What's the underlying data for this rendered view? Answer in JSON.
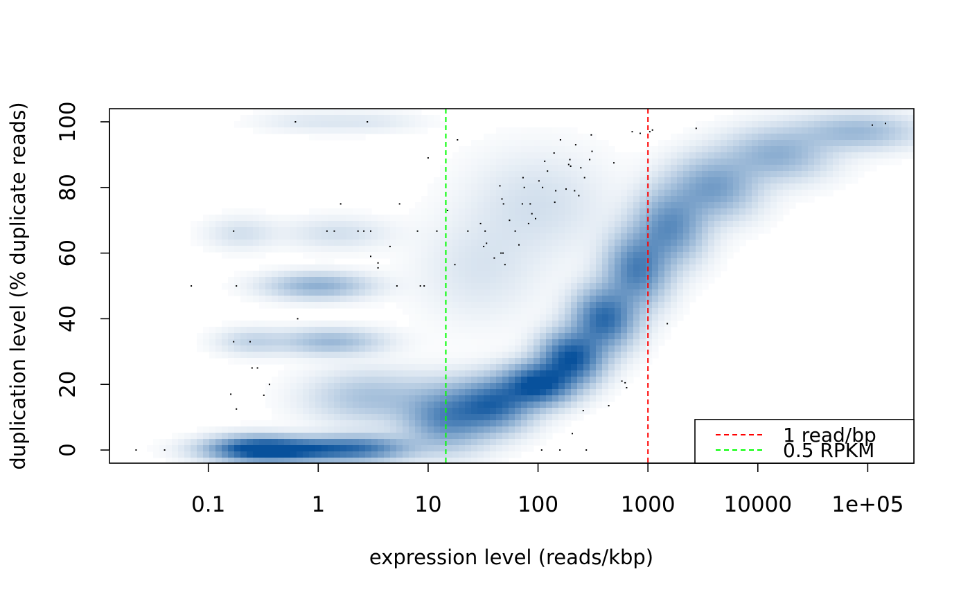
{
  "chart_data": {
    "type": "scatter",
    "style": "smoothed density scatter (blue density with outlier points)",
    "xlabel": "expression level (reads/kbp)",
    "ylabel": "duplication level (% duplicate reads)",
    "x_scale": "log10",
    "xlim": [
      0.0126,
      263000
    ],
    "ylim": [
      -4,
      104
    ],
    "x_ticks": [
      0.1,
      1,
      10,
      100,
      1000,
      10000,
      100000
    ],
    "x_tick_labels": [
      "0.1",
      "1",
      "10",
      "100",
      "1000",
      "10000",
      "1e+05"
    ],
    "y_ticks": [
      0,
      20,
      40,
      60,
      80,
      100
    ],
    "y_tick_labels": [
      "0",
      "20",
      "40",
      "60",
      "80",
      "100"
    ],
    "grid": false,
    "density_color": "#08519c",
    "reference_lines": [
      {
        "name": "1 read/bp",
        "x": 1000,
        "color": "#ff0000",
        "style": "dashed"
      },
      {
        "name": "0.5 RPKM",
        "x": 14.5,
        "color": "#00ff00",
        "style": "dashed"
      }
    ],
    "legend": {
      "placement": "bottom-right",
      "entries": [
        {
          "label": "1 read/bp",
          "color": "#ff0000",
          "style": "dashed"
        },
        {
          "label": "0.5 RPKM",
          "color": "#00ff00",
          "style": "dashed"
        }
      ]
    },
    "density_regions": [
      {
        "x": 0.5,
        "y": 0,
        "sx": 0.38,
        "sy": 2.2,
        "weight": 1.0
      },
      {
        "x": 2.5,
        "y": 0.5,
        "sx": 0.3,
        "sy": 2.5,
        "weight": 0.6
      },
      {
        "x": 0.25,
        "y": 0.5,
        "sx": 0.25,
        "sy": 2.5,
        "weight": 0.5
      },
      {
        "x": 1.0,
        "y": 50,
        "sx": 0.3,
        "sy": 2.5,
        "weight": 0.35
      },
      {
        "x": 1.3,
        "y": 33,
        "sx": 0.3,
        "sy": 2.5,
        "weight": 0.3
      },
      {
        "x": 0.25,
        "y": 33,
        "sx": 0.2,
        "sy": 2.5,
        "weight": 0.15
      },
      {
        "x": 0.2,
        "y": 66,
        "sx": 0.2,
        "sy": 3.0,
        "weight": 0.1
      },
      {
        "x": 1.5,
        "y": 66,
        "sx": 0.3,
        "sy": 3.0,
        "weight": 0.1
      },
      {
        "x": 0.8,
        "y": 100,
        "sx": 0.3,
        "sy": 2.0,
        "weight": 0.06
      },
      {
        "x": 3.0,
        "y": 100,
        "sx": 0.3,
        "sy": 2.0,
        "weight": 0.06
      },
      {
        "x": 3.0,
        "y": 16,
        "sx": 0.35,
        "sy": 5.0,
        "weight": 0.25
      },
      {
        "x": 15,
        "y": 10,
        "sx": 0.25,
        "sy": 6.0,
        "weight": 0.6
      },
      {
        "x": 40,
        "y": 14,
        "sx": 0.22,
        "sy": 5.0,
        "weight": 0.75
      },
      {
        "x": 100,
        "y": 20,
        "sx": 0.2,
        "sy": 4.0,
        "weight": 1.0
      },
      {
        "x": 200,
        "y": 28,
        "sx": 0.18,
        "sy": 5.0,
        "weight": 0.95
      },
      {
        "x": 400,
        "y": 40,
        "sx": 0.18,
        "sy": 6.0,
        "weight": 0.8
      },
      {
        "x": 800,
        "y": 55,
        "sx": 0.18,
        "sy": 7.0,
        "weight": 0.65
      },
      {
        "x": 1600,
        "y": 68,
        "sx": 0.2,
        "sy": 7.0,
        "weight": 0.55
      },
      {
        "x": 4000,
        "y": 80,
        "sx": 0.25,
        "sy": 6.0,
        "weight": 0.45
      },
      {
        "x": 15000,
        "y": 90,
        "sx": 0.3,
        "sy": 5.0,
        "weight": 0.35
      },
      {
        "x": 80000,
        "y": 97,
        "sx": 0.35,
        "sy": 3.5,
        "weight": 0.3
      },
      {
        "x": 100,
        "y": 75,
        "sx": 0.4,
        "sy": 10.0,
        "weight": 0.1
      },
      {
        "x": 30,
        "y": 55,
        "sx": 0.35,
        "sy": 10.0,
        "weight": 0.08
      }
    ],
    "outlier_points": [
      [
        0.022,
        0
      ],
      [
        0.04,
        0
      ],
      [
        0.07,
        50
      ],
      [
        0.16,
        17
      ],
      [
        0.17,
        33
      ],
      [
        0.17,
        66.7
      ],
      [
        0.18,
        12.5
      ],
      [
        0.18,
        50
      ],
      [
        0.24,
        33
      ],
      [
        0.25,
        25
      ],
      [
        0.28,
        25
      ],
      [
        0.32,
        16.7
      ],
      [
        0.36,
        20
      ],
      [
        0.62,
        100
      ],
      [
        0.65,
        40
      ],
      [
        1.2,
        66.7
      ],
      [
        1.4,
        66.7
      ],
      [
        1.6,
        75
      ],
      [
        2.3,
        66.7
      ],
      [
        2.6,
        66.7
      ],
      [
        2.8,
        100
      ],
      [
        3.0,
        66.7
      ],
      [
        3.0,
        59
      ],
      [
        3.5,
        57
      ],
      [
        3.5,
        55.5
      ],
      [
        4.5,
        62
      ],
      [
        5.2,
        50
      ],
      [
        5.5,
        75
      ],
      [
        8.0,
        66.7
      ],
      [
        8.5,
        50
      ],
      [
        9.2,
        50
      ],
      [
        10,
        89
      ],
      [
        12,
        66.7
      ],
      [
        15,
        73
      ],
      [
        17.5,
        56.5
      ],
      [
        18.5,
        94.5
      ],
      [
        23,
        66.7
      ],
      [
        30,
        69
      ],
      [
        32,
        62
      ],
      [
        33,
        66.7
      ],
      [
        34,
        63
      ],
      [
        40,
        58.5
      ],
      [
        45,
        80.5
      ],
      [
        46,
        60
      ],
      [
        47,
        76.5
      ],
      [
        48,
        60
      ],
      [
        48.5,
        75
      ],
      [
        50,
        56.5
      ],
      [
        55,
        70
      ],
      [
        62,
        66.7
      ],
      [
        67,
        62.5
      ],
      [
        72,
        75
      ],
      [
        73,
        83
      ],
      [
        75,
        80
      ],
      [
        82,
        69
      ],
      [
        85,
        75
      ],
      [
        88,
        72
      ],
      [
        95,
        70.5
      ],
      [
        102,
        82
      ],
      [
        108,
        0
      ],
      [
        110,
        80
      ],
      [
        115,
        88
      ],
      [
        122,
        85
      ],
      [
        140,
        90.5
      ],
      [
        142,
        75.5
      ],
      [
        145,
        79
      ],
      [
        158,
        0
      ],
      [
        160,
        94.5
      ],
      [
        180,
        79.5
      ],
      [
        190,
        87
      ],
      [
        195,
        88.5
      ],
      [
        198,
        86.5
      ],
      [
        205,
        5
      ],
      [
        215,
        79
      ],
      [
        220,
        93
      ],
      [
        235,
        77.5
      ],
      [
        245,
        86
      ],
      [
        258,
        12
      ],
      [
        265,
        83
      ],
      [
        275,
        0
      ],
      [
        295,
        88.5
      ],
      [
        305,
        96
      ],
      [
        310,
        91
      ],
      [
        440,
        13.5
      ],
      [
        490,
        87.5
      ],
      [
        580,
        21
      ],
      [
        620,
        20.5
      ],
      [
        640,
        19
      ],
      [
        720,
        97
      ],
      [
        850,
        96.5
      ],
      [
        1040,
        97
      ],
      [
        1100,
        97.5
      ],
      [
        1500,
        38.5
      ],
      [
        2750,
        98
      ],
      [
        110000,
        99
      ],
      [
        145000,
        99.5
      ]
    ]
  }
}
